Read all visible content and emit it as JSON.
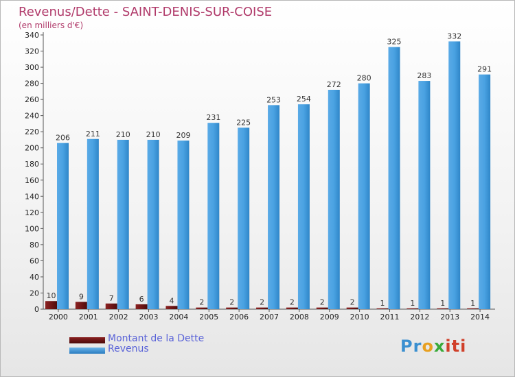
{
  "chart_data": {
    "type": "bar",
    "title": "Revenus/Dette - SAINT-DENIS-SUR-COISE",
    "subtitle": "(en milliers d'€)",
    "categories": [
      "2000",
      "2001",
      "2002",
      "2003",
      "2004",
      "2005",
      "2006",
      "2007",
      "2008",
      "2009",
      "2010",
      "2011",
      "2012",
      "2013",
      "2014"
    ],
    "series": [
      {
        "name": "Montant de la Dette",
        "color": "#6b1414",
        "values": [
          10,
          9,
          7,
          6,
          4,
          2,
          2,
          2,
          2,
          2,
          2,
          1,
          1,
          1,
          1
        ]
      },
      {
        "name": "Revenus",
        "color": "#3d97d9",
        "values": [
          206,
          211,
          210,
          210,
          209,
          231,
          225,
          253,
          254,
          272,
          280,
          325,
          283,
          332,
          291
        ]
      }
    ],
    "ylim": [
      0,
      340
    ],
    "yticks": [
      0,
      20,
      40,
      60,
      80,
      100,
      120,
      140,
      160,
      180,
      200,
      220,
      240,
      260,
      280,
      300,
      320,
      340
    ],
    "grid": false,
    "legend_position": "bottom-left"
  },
  "logo": {
    "parts": [
      "Pr",
      "o",
      "x",
      "iti"
    ]
  }
}
